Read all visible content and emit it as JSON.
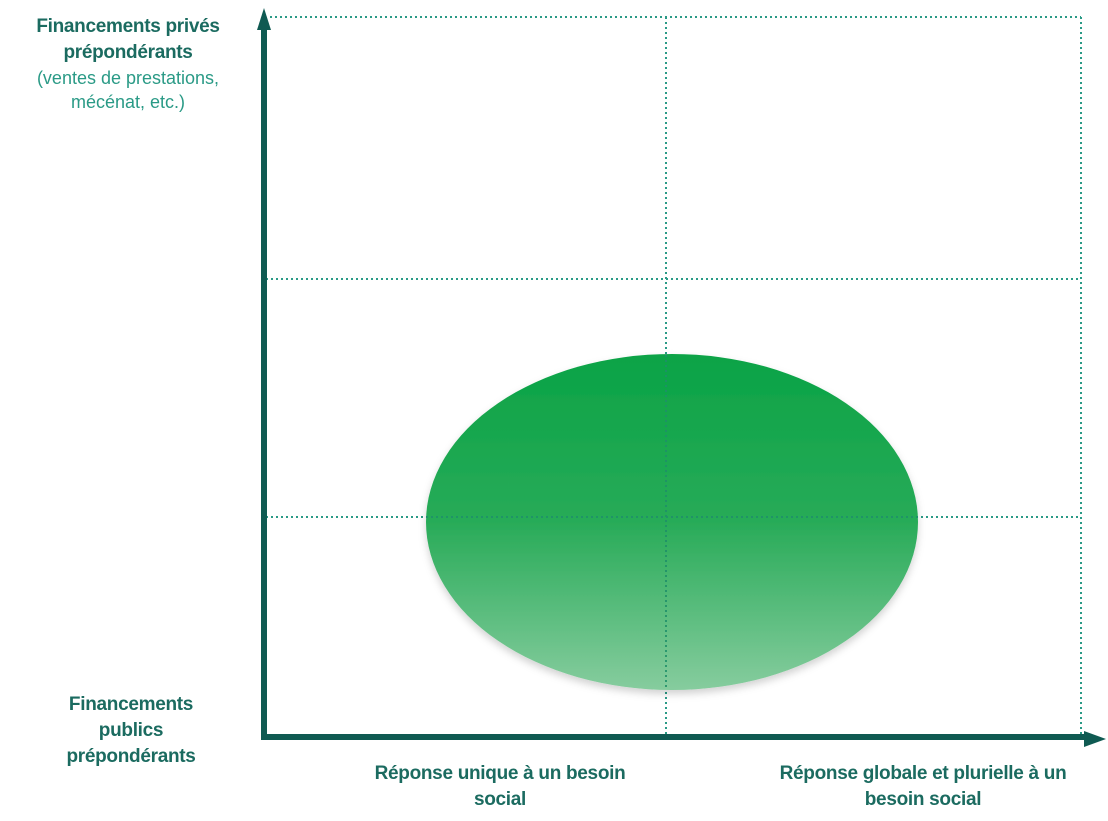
{
  "y_axis": {
    "top_label_line1": "Financements privés",
    "top_label_line2": "prépondérants",
    "top_note_line1": "(ventes de prestations,",
    "top_note_line2": "mécénat, etc.)",
    "bottom_label_line1": "Financements",
    "bottom_label_line2": "publics",
    "bottom_label_line3": "prépondérants"
  },
  "x_axis": {
    "left_label_line1": "Réponse unique à un besoin",
    "left_label_line2": "social",
    "right_label_line1": "Réponse globale et plurielle à un",
    "right_label_line2": "besoin social"
  },
  "colors": {
    "axis": "#0f5a52",
    "grid": "#2a9a86",
    "ellipse_top": "#0aa346",
    "ellipse_bottom": "#86cc9e",
    "text": "#1b6b60"
  }
}
